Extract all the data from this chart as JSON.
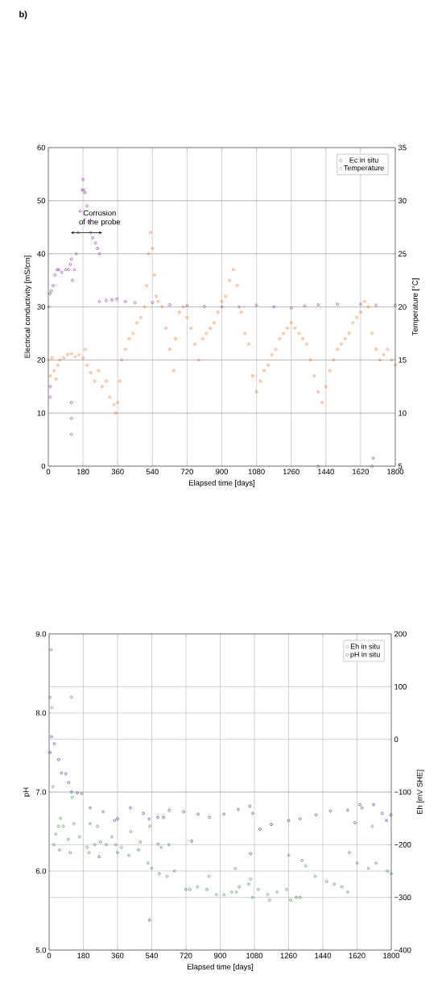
{
  "chart_data": [
    {
      "type": "scatter",
      "title": "b)",
      "xlabel": "Elapsed time [days]",
      "ylabel": "Electrical conductivity [mS/cm]",
      "y2label": "Temperature [°C]",
      "xlim": [
        0,
        1800
      ],
      "xticks": [
        0,
        180,
        360,
        540,
        720,
        900,
        1080,
        1260,
        1440,
        1620,
        1800
      ],
      "ylim": [
        0,
        60
      ],
      "yticks": [
        0,
        10,
        20,
        30,
        40,
        50,
        60
      ],
      "y2lim": [
        5,
        35
      ],
      "y2ticks": [
        5,
        10,
        15,
        20,
        25,
        30,
        35
      ],
      "grid": true,
      "legend": "top right",
      "marker": "circle",
      "annotations": [
        "Corrosion of the probe"
      ],
      "series": [
        {
          "name": "Ec in situ",
          "color": "#7b2a8b",
          "x": [
            3,
            8,
            15,
            25,
            35,
            45,
            55,
            70,
            90,
            105,
            115,
            120,
            125,
            135,
            145,
            155,
            165,
            175,
            180,
            185,
            190,
            200,
            210,
            220,
            230,
            245,
            255,
            265,
            265,
            300,
            330,
            356,
            400,
            450,
            540,
            630,
            720,
            810,
            900,
            990,
            1080,
            1170,
            1260,
            1330,
            1400,
            1500,
            1620,
            1700,
            1800,
            120,
            120,
            120,
            10,
            10,
            1400,
            1680,
            1685
          ],
          "values": [
            30,
            32.5,
            33,
            34,
            36,
            37,
            37,
            36.5,
            37,
            37,
            38,
            39,
            35,
            37,
            40,
            44,
            48,
            52,
            54,
            52,
            51.5,
            49,
            46,
            44,
            43,
            42,
            41,
            40,
            31,
            31.2,
            31.3,
            31.5,
            31,
            30.8,
            30.8,
            30.4,
            30.2,
            30.1,
            30,
            30,
            30.3,
            30,
            29.8,
            30.2,
            30.4,
            30.5,
            30.5,
            30.3,
            30.3,
            6,
            9,
            12,
            15,
            13,
            0,
            0,
            1.5
          ]
        },
        {
          "name": "Temperature",
          "color": "#e8661e",
          "axis": "y2",
          "x": [
            0,
            10,
            20,
            30,
            40,
            50,
            60,
            80,
            100,
            120,
            140,
            160,
            180,
            190,
            200,
            220,
            240,
            260,
            280,
            300,
            320,
            340,
            350,
            360,
            370,
            380,
            400,
            420,
            440,
            460,
            480,
            500,
            510,
            520,
            530,
            540,
            550,
            560,
            570,
            590,
            610,
            630,
            650,
            660,
            680,
            700,
            720,
            740,
            760,
            780,
            800,
            820,
            840,
            860,
            880,
            900,
            920,
            940,
            960,
            980,
            1000,
            1020,
            1040,
            1060,
            1080,
            1100,
            1120,
            1140,
            1160,
            1180,
            1200,
            1220,
            1240,
            1260,
            1280,
            1300,
            1320,
            1340,
            1360,
            1380,
            1400,
            1420,
            1440,
            1460,
            1480,
            1500,
            1520,
            1540,
            1560,
            1580,
            1600,
            1620,
            1640,
            1660,
            1680,
            1700,
            1720,
            1740,
            1760,
            1780,
            1800
          ],
          "values": [
            15,
            13.5,
            15.2,
            14,
            13.2,
            14.5,
            15,
            15.2,
            15.5,
            15.6,
            15.3,
            15.5,
            15.2,
            16,
            14.5,
            13.8,
            13,
            14,
            12.5,
            13,
            11.5,
            10.8,
            10,
            11,
            13,
            15,
            16,
            17,
            17.5,
            18.5,
            19,
            20,
            22,
            25,
            27,
            25.5,
            23,
            21,
            20.5,
            20,
            18,
            16,
            14,
            17,
            19.5,
            20,
            19,
            18,
            16.5,
            15,
            17,
            17.5,
            18,
            18.5,
            19.5,
            20.5,
            21,
            22.5,
            23.5,
            22,
            19.5,
            17.5,
            16.5,
            13.5,
            12,
            13,
            14,
            14.5,
            15.5,
            16,
            17,
            17.5,
            18,
            18.5,
            18,
            17.5,
            17,
            16.5,
            15,
            13.5,
            12,
            11,
            12.5,
            14,
            15,
            16,
            16.5,
            17,
            17.5,
            18.5,
            19,
            19.5,
            20.5,
            20,
            17.5,
            16,
            15,
            15.5,
            16,
            15,
            14.5
          ]
        }
      ]
    },
    {
      "type": "scatter",
      "xlabel": "Elapsed time [days]",
      "ylabel": "pH",
      "y2label": "Eh [mV SHE]",
      "xlim": [
        0,
        1800
      ],
      "xticks": [
        0,
        180,
        360,
        540,
        720,
        900,
        1080,
        1260,
        1440,
        1620,
        1800
      ],
      "ylim": [
        5,
        9
      ],
      "yticks": [
        {
          "value": 5,
          "label": "5.0"
        },
        {
          "value": 6,
          "label": "6.0"
        },
        {
          "value": 7,
          "label": "7.0"
        },
        {
          "value": 8,
          "label": "8.0"
        },
        {
          "value": 9,
          "label": "9.0"
        }
      ],
      "y2lim": [
        -400,
        200
      ],
      "y2ticks": [
        {
          "value": -400,
          "label": "−400"
        },
        {
          "value": -300,
          "label": "−300"
        },
        {
          "value": -200,
          "label": "−200"
        },
        {
          "value": -100,
          "label": "−100"
        },
        0,
        100,
        200
      ],
      "grid": true,
      "legend": "top right",
      "marker": "circle",
      "series": [
        {
          "name": "Eh in situ",
          "color": "#2e7d32",
          "axis": "y2",
          "x": [
            5,
            10,
            15,
            20,
            25,
            35,
            50,
            55,
            60,
            75,
            100,
            112,
            118,
            122,
            130,
            160,
            200,
            210,
            216,
            240,
            255,
            270,
            300,
            330,
            350,
            360,
            380,
            420,
            430,
            470,
            480,
            520,
            530,
            540,
            580,
            590,
            620,
            630,
            660,
            720,
            740,
            780,
            830,
            840,
            880,
            920,
            960,
            980,
            985,
            1000,
            1050,
            1060,
            1070,
            1100,
            1150,
            1160,
            1200,
            1250,
            1260,
            1270,
            1300,
            1320,
            1330,
            1350,
            1400,
            1460,
            1500,
            1540,
            1570,
            1580,
            1620,
            1680,
            1700,
            1720,
            1780,
            1800
          ],
          "values": [
            80,
            170,
            60,
            -90,
            -200,
            -180,
            -165,
            -210,
            -150,
            -165,
            -190,
            -215,
            80,
            -110,
            -160,
            -185,
            -205,
            -215,
            -160,
            -200,
            -165,
            -195,
            -200,
            -185,
            -200,
            -215,
            -205,
            -220,
            -175,
            -210,
            -195,
            -235,
            -165,
            -245,
            -255,
            -205,
            -260,
            -200,
            -250,
            -285,
            -285,
            -280,
            -285,
            -260,
            -295,
            -295,
            -290,
            -245,
            -290,
            -280,
            -275,
            -265,
            -300,
            -285,
            -295,
            -305,
            -290,
            -285,
            -220,
            -305,
            -300,
            -300,
            -230,
            -240,
            -260,
            -270,
            -275,
            -280,
            -290,
            -215,
            -235,
            -245,
            -165,
            -235,
            -250,
            -255
          ]
        },
        {
          "name": "pH in situ",
          "color": "#2a2a80",
          "x": [
            5,
            12,
            27,
            50,
            65,
            88,
            103,
            118,
            148,
            171,
            216,
            284,
            345,
            360,
            428,
            496,
            526,
            572,
            602,
            632,
            708,
            784,
            844,
            920,
            995,
            1056,
            1071,
            1109,
            1169,
            1260,
            1320,
            1404,
            1480,
            1571,
            1609,
            1646,
            1707,
            1752,
            1775,
            1797,
            528,
            263,
            573,
            750,
            1060,
            1635
          ],
          "values": [
            7.5,
            7.7,
            7.61,
            7.41,
            7.24,
            7.23,
            7.12,
            7.0,
            6.99,
            6.98,
            6.8,
            6.75,
            6.64,
            6.66,
            6.8,
            6.73,
            6.66,
            6.68,
            6.68,
            6.77,
            6.75,
            6.72,
            6.68,
            6.72,
            6.78,
            6.82,
            6.73,
            6.53,
            6.59,
            6.64,
            6.66,
            6.71,
            6.76,
            6.77,
            6.61,
            6.8,
            6.84,
            6.73,
            6.64,
            6.71,
            5.38,
            6.18,
            6.34,
            6.38,
            6.22,
            6.84
          ]
        }
      ]
    }
  ]
}
